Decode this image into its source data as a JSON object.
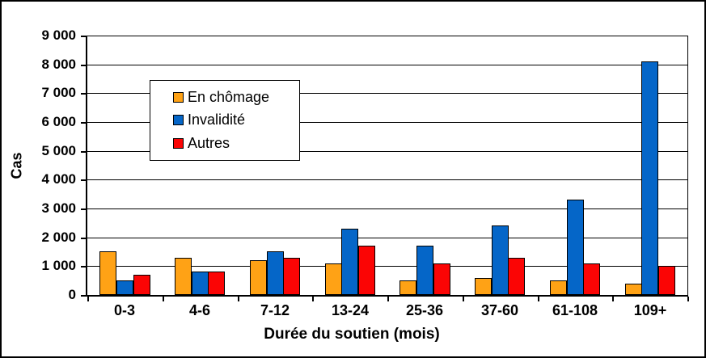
{
  "chart_data": {
    "type": "bar",
    "title": "",
    "categories": [
      "0-3",
      "4-6",
      "7-12",
      "13-24",
      "25-36",
      "37-60",
      "61-108",
      "109+"
    ],
    "series": [
      {
        "name": "En chômage",
        "color": "#FFA215",
        "values": [
          1500,
          1300,
          1200,
          1100,
          500,
          600,
          500,
          400
        ]
      },
      {
        "name": "Invalidité",
        "color": "#0566C8",
        "values": [
          500,
          800,
          1500,
          2300,
          1700,
          2400,
          3300,
          8100
        ]
      },
      {
        "name": "Autres",
        "color": "#FB0505",
        "values": [
          700,
          800,
          1300,
          1700,
          1100,
          1300,
          1100,
          1000
        ]
      }
    ],
    "xlabel": "Durée du soutien (mois)",
    "ylabel": "Cas",
    "ylim": [
      0,
      9000
    ],
    "ytick_step": 1000,
    "ytick_labels": [
      "0",
      "1 000",
      "2 000",
      "3 000",
      "4 000",
      "5 000",
      "6 000",
      "7 000",
      "8 000",
      "9 000"
    ],
    "grid": true,
    "legend_position": "upper-left-inside",
    "bar_border_color": "#000000",
    "axis_color": "#000000"
  }
}
